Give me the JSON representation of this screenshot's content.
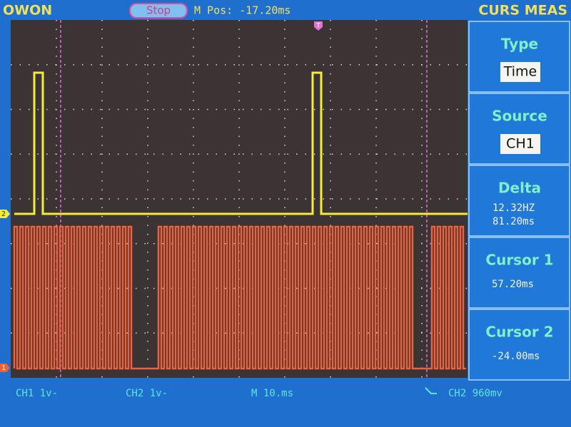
{
  "header": {
    "brand": "OWON",
    "status": "Stop",
    "m_pos": "M Pos: -17.20ms",
    "menu_title": "CURS MEAS"
  },
  "markers": {
    "trigger": "T",
    "ch2": "2",
    "ch1": "1"
  },
  "menu": [
    {
      "label": "Type",
      "value": "Time"
    },
    {
      "label": "Source",
      "value": "CH1"
    },
    {
      "label": "Delta",
      "values": [
        "12.32HZ",
        "81.20ms"
      ]
    },
    {
      "label": "Cursor 1",
      "value": "57.20ms"
    },
    {
      "label": "Cursor 2",
      "value": "-24.00ms"
    }
  ],
  "footer": {
    "ch1": "CH1 1v-",
    "ch2": "CH2 1v-",
    "timebase": "M 10.ms",
    "trigger": "CH2 960mv"
  }
}
